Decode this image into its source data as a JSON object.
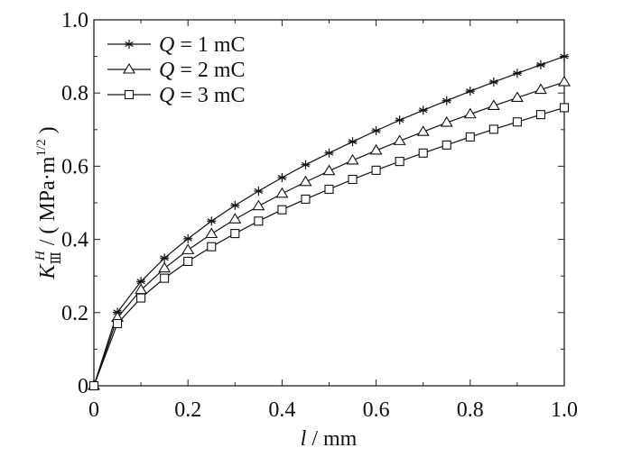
{
  "chart_data": {
    "type": "line",
    "title": "",
    "xlabel": {
      "var": "l",
      "unit": " / mm"
    },
    "ylabel": {
      "var": "K",
      "sub": "Ⅲ",
      "sup": "H",
      "unit": " / ( MPa·m",
      "unit_sup": "1/2",
      "unit_close": " )"
    },
    "xlim": [
      0,
      1.0
    ],
    "ylim": [
      0,
      1.0
    ],
    "xticks": [
      "0",
      "0.2",
      "0.4",
      "0.6",
      "0.8",
      "1.0"
    ],
    "yticks": [
      "0",
      "0.2",
      "0.4",
      "0.6",
      "0.8",
      "1.0"
    ],
    "grid": false,
    "legend_position": "top-left",
    "x": [
      0,
      0.05,
      0.1,
      0.15,
      0.2,
      0.25,
      0.3,
      0.35,
      0.4,
      0.45,
      0.5,
      0.55,
      0.6,
      0.65,
      0.7,
      0.75,
      0.8,
      0.85,
      0.9,
      0.95,
      1.0
    ],
    "series": [
      {
        "name": "Q = 1 mC",
        "q": "Q",
        "label": " = 1 mC",
        "marker": "asterisk",
        "values": [
          0,
          0.201,
          0.285,
          0.349,
          0.402,
          0.45,
          0.493,
          0.532,
          0.569,
          0.604,
          0.636,
          0.667,
          0.697,
          0.726,
          0.753,
          0.779,
          0.805,
          0.83,
          0.854,
          0.877,
          0.9
        ]
      },
      {
        "name": "Q = 2 mC",
        "q": "Q",
        "label": " = 2 mC",
        "marker": "triangle",
        "values": [
          0,
          0.186,
          0.262,
          0.321,
          0.371,
          0.415,
          0.455,
          0.491,
          0.525,
          0.557,
          0.587,
          0.616,
          0.643,
          0.669,
          0.694,
          0.719,
          0.742,
          0.765,
          0.787,
          0.809,
          0.83
        ]
      },
      {
        "name": "Q = 3 mC",
        "q": "Q",
        "label": " = 3 mC",
        "marker": "square",
        "values": [
          0,
          0.17,
          0.24,
          0.294,
          0.34,
          0.38,
          0.416,
          0.45,
          0.481,
          0.51,
          0.537,
          0.564,
          0.589,
          0.613,
          0.636,
          0.658,
          0.68,
          0.701,
          0.721,
          0.741,
          0.76
        ]
      }
    ]
  }
}
